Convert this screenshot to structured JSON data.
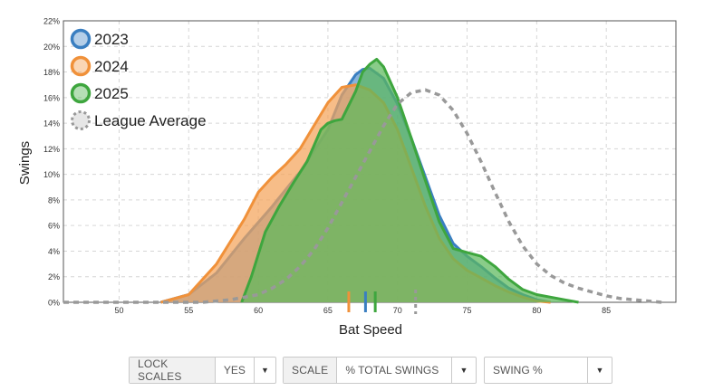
{
  "chart_data": {
    "type": "area",
    "xlabel": "Bat Speed",
    "ylabel": "Swings",
    "xlim": [
      46,
      90
    ],
    "ylim": [
      0,
      22
    ],
    "x_ticks": [
      50,
      55,
      60,
      65,
      70,
      75,
      80,
      85
    ],
    "y_ticks": [
      "0%",
      "2%",
      "4%",
      "6%",
      "8%",
      "10%",
      "12%",
      "14%",
      "16%",
      "18%",
      "20%",
      "22%"
    ],
    "grid": true,
    "legend_position": "top-left",
    "series": [
      {
        "name": "2023",
        "color": "#3a7fc1",
        "fill": "#5b95cc",
        "marker_x": 67.7,
        "points": [
          [
            53,
            0
          ],
          [
            55,
            0.6
          ],
          [
            57,
            2.3
          ],
          [
            59,
            5.0
          ],
          [
            61,
            7.5
          ],
          [
            63,
            10.2
          ],
          [
            65,
            13.5
          ],
          [
            66,
            16.2
          ],
          [
            67,
            17.8
          ],
          [
            67.5,
            18.2
          ],
          [
            68,
            18.3
          ],
          [
            69,
            17.5
          ],
          [
            70,
            15.5
          ],
          [
            71,
            12.8
          ],
          [
            72,
            9.8
          ],
          [
            73,
            6.8
          ],
          [
            74,
            4.6
          ],
          [
            75,
            3.6
          ],
          [
            76,
            2.8
          ],
          [
            77,
            1.9
          ],
          [
            78,
            1.1
          ],
          [
            79,
            0.6
          ],
          [
            80,
            0.2
          ],
          [
            81,
            0
          ]
        ]
      },
      {
        "name": "2024",
        "color": "#f0913a",
        "fill": "#f4a35a",
        "marker_x": 66.5,
        "points": [
          [
            53,
            0
          ],
          [
            55,
            0.6
          ],
          [
            57,
            3.0
          ],
          [
            59,
            6.5
          ],
          [
            60,
            8.6
          ],
          [
            61,
            9.8
          ],
          [
            62,
            10.8
          ],
          [
            63,
            12.0
          ],
          [
            64,
            13.8
          ],
          [
            65,
            15.6
          ],
          [
            66,
            16.8
          ],
          [
            67,
            17.0
          ],
          [
            68,
            16.6
          ],
          [
            69,
            15.6
          ],
          [
            70,
            13.5
          ],
          [
            71,
            10.5
          ],
          [
            72,
            7.5
          ],
          [
            73,
            5.0
          ],
          [
            74,
            3.4
          ],
          [
            75,
            2.5
          ],
          [
            76,
            1.9
          ],
          [
            77,
            1.3
          ],
          [
            78,
            0.8
          ],
          [
            79,
            0.4
          ],
          [
            80,
            0.1
          ],
          [
            81,
            0
          ]
        ]
      },
      {
        "name": "2025",
        "color": "#3ea63e",
        "fill": "#5cb85c",
        "marker_x": 68.4,
        "points": [
          [
            58.8,
            0
          ],
          [
            59.5,
            2.0
          ],
          [
            60.5,
            5.5
          ],
          [
            61.5,
            7.5
          ],
          [
            62.5,
            9.3
          ],
          [
            63.5,
            11.0
          ],
          [
            64.5,
            13.5
          ],
          [
            65,
            14.0
          ],
          [
            65.5,
            14.2
          ],
          [
            66,
            14.3
          ],
          [
            67,
            16.5
          ],
          [
            67.5,
            18.0
          ],
          [
            68,
            18.6
          ],
          [
            68.5,
            19.0
          ],
          [
            69,
            18.4
          ],
          [
            70,
            16.0
          ],
          [
            71,
            12.8
          ],
          [
            72,
            9.5
          ],
          [
            73,
            6.3
          ],
          [
            74,
            4.2
          ],
          [
            75,
            3.9
          ],
          [
            76,
            3.6
          ],
          [
            77,
            2.8
          ],
          [
            78,
            1.8
          ],
          [
            79,
            1.0
          ],
          [
            80,
            0.6
          ],
          [
            81,
            0.4
          ],
          [
            82,
            0.2
          ],
          [
            83,
            0
          ]
        ]
      },
      {
        "name": "League Average",
        "color": "#999999",
        "dashed": true,
        "marker_x": 71.3,
        "points": [
          [
            46,
            0
          ],
          [
            50,
            0
          ],
          [
            54,
            0
          ],
          [
            56,
            0
          ],
          [
            58,
            0.2
          ],
          [
            60,
            0.6
          ],
          [
            61,
            1.1
          ],
          [
            62,
            1.8
          ],
          [
            63,
            2.8
          ],
          [
            64,
            4.1
          ],
          [
            65,
            5.8
          ],
          [
            66,
            7.8
          ],
          [
            67,
            9.8
          ],
          [
            68,
            11.8
          ],
          [
            69,
            13.8
          ],
          [
            70,
            15.5
          ],
          [
            71,
            16.4
          ],
          [
            72,
            16.6
          ],
          [
            73,
            16.2
          ],
          [
            74,
            15.0
          ],
          [
            75,
            13.2
          ],
          [
            76,
            11.0
          ],
          [
            77,
            8.6
          ],
          [
            78,
            6.3
          ],
          [
            79,
            4.4
          ],
          [
            80,
            3.0
          ],
          [
            81,
            2.1
          ],
          [
            82,
            1.5
          ],
          [
            83,
            1.1
          ],
          [
            84,
            0.8
          ],
          [
            85,
            0.5
          ],
          [
            86,
            0.3
          ],
          [
            87,
            0.2
          ],
          [
            88,
            0.1
          ],
          [
            89,
            0
          ]
        ]
      }
    ]
  },
  "controls": {
    "lock_scales_label": "LOCK SCALES",
    "lock_scales_value": "YES",
    "scale_label": "SCALE",
    "scale_value": "% TOTAL SWINGS",
    "metric_value": "SWING %",
    "arrow": "▼"
  }
}
